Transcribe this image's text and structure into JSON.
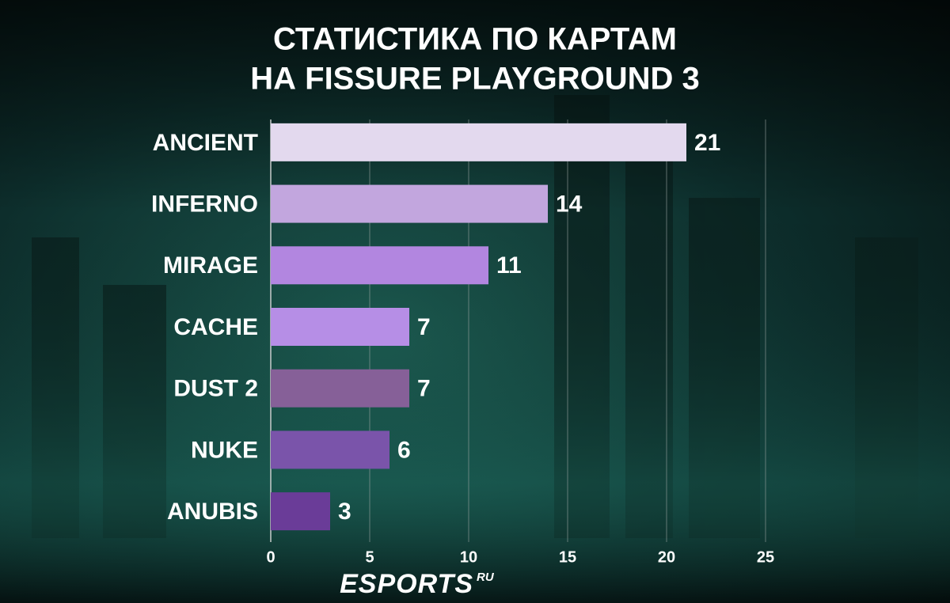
{
  "chart_data": {
    "type": "bar",
    "orientation": "horizontal",
    "title": [
      "СТАТИСТИКА ПО КАРТАМ",
      "НА FISSURE PLAYGROUND 3"
    ],
    "categories": [
      "ANCIENT",
      "INFERNO",
      "MIRAGE",
      "CACHE",
      "DUST 2",
      "NUKE",
      "ANUBIS"
    ],
    "values": [
      21,
      14,
      11,
      7,
      7,
      6,
      3
    ],
    "colors": [
      "#e3d9ee",
      "#c2a6de",
      "#b286e0",
      "#b68ee6",
      "#866098",
      "#7a54aa",
      "#6a3c98"
    ],
    "xlim": [
      0,
      25
    ],
    "xticks": [
      0,
      5,
      10,
      15,
      20,
      25
    ],
    "grid": true
  },
  "branding": {
    "logo": "ESPORTS",
    "suffix": "RU"
  }
}
